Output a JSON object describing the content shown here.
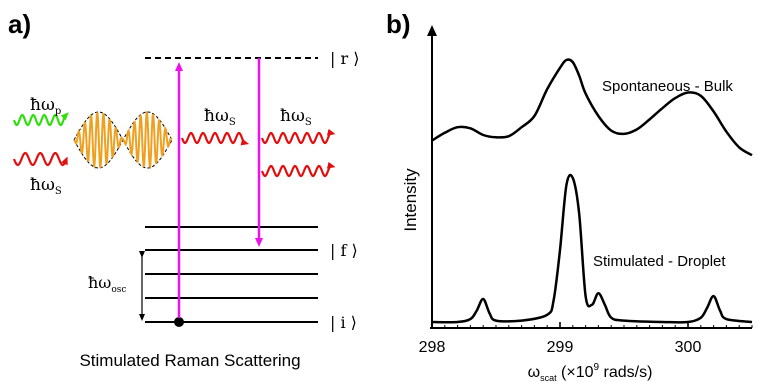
{
  "panel_a": {
    "tag": "a)",
    "caption": "Stimulated Raman Scattering",
    "state_r": "| r ⟩",
    "state_f": "| f ⟩",
    "state_i": "| i ⟩",
    "omega_p": "ħω",
    "omega_p_sub": "p",
    "omega_s_in": "ħω",
    "omega_s_in_sub": "S",
    "omega_s_mid": "ħω",
    "omega_s_mid_sub": "S",
    "omega_s_out": "ħω",
    "omega_s_out_sub": "S",
    "omega_osc": "ħω",
    "omega_osc_sub": "osc",
    "colors": {
      "pump": "#33dd11",
      "stokes": "#e01010",
      "transition": "#ee11ee",
      "wavepacket": "#f0a020"
    }
  },
  "panel_b": {
    "tag": "b)",
    "ylabel": "Intensity",
    "xlabel_main": "ω",
    "xlabel_sub": "scat",
    "xlabel_rest": " (×10",
    "xlabel_sup": "9",
    "xlabel_end": " rads/s)",
    "x_ticks": [
      "298",
      "299",
      "300"
    ],
    "spont_label": "Spontaneous - Bulk",
    "stim_label": "Stimulated - Droplet"
  },
  "chart_data": {
    "type": "line",
    "xlim": [
      298.0,
      300.5
    ],
    "x_ticks": [
      298,
      299,
      300
    ],
    "ylabel": "Intensity",
    "grid": false,
    "series": [
      {
        "name": "Spontaneous - Bulk",
        "x": [
          298.0,
          298.1,
          298.2,
          298.3,
          298.4,
          298.5,
          298.6,
          298.7,
          298.8,
          298.9,
          299.0,
          299.05,
          299.1,
          299.15,
          299.2,
          299.3,
          299.4,
          299.5,
          299.6,
          299.7,
          299.8,
          299.9,
          300.0,
          300.1,
          300.2,
          300.3,
          300.4,
          300.5
        ],
        "y": [
          0.28,
          0.35,
          0.4,
          0.39,
          0.33,
          0.31,
          0.32,
          0.4,
          0.5,
          0.74,
          0.93,
          1.0,
          0.98,
          0.86,
          0.7,
          0.5,
          0.37,
          0.34,
          0.38,
          0.47,
          0.57,
          0.66,
          0.71,
          0.68,
          0.54,
          0.36,
          0.22,
          0.15
        ]
      },
      {
        "name": "Stimulated - Droplet",
        "x": [
          298.0,
          298.2,
          298.3,
          298.35,
          298.4,
          298.45,
          298.5,
          298.7,
          298.9,
          298.95,
          299.0,
          299.05,
          299.1,
          299.15,
          299.2,
          299.25,
          299.3,
          299.35,
          299.4,
          299.5,
          299.8,
          300.0,
          300.1,
          300.15,
          300.2,
          300.25,
          300.3,
          300.5
        ],
        "y": [
          0.0,
          0.0,
          0.02,
          0.08,
          0.16,
          0.06,
          0.01,
          0.01,
          0.05,
          0.15,
          0.5,
          0.95,
          1.0,
          0.75,
          0.18,
          0.12,
          0.2,
          0.12,
          0.03,
          0.01,
          0.0,
          0.0,
          0.03,
          0.1,
          0.18,
          0.08,
          0.02,
          0.0
        ]
      }
    ]
  }
}
